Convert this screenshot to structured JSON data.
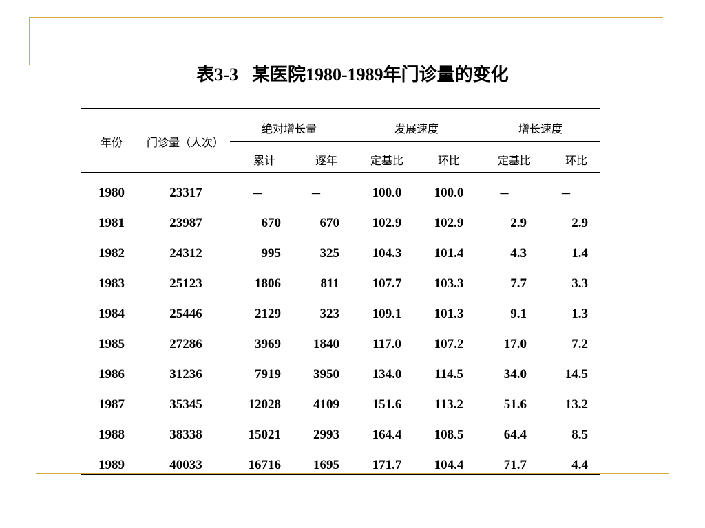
{
  "title": {
    "prefix": "表3-3",
    "text": "某医院1980-1989年门诊量的变化"
  },
  "headers": {
    "year": "年份",
    "visits": "门诊量（人次）",
    "absolute_growth": "绝对增长量",
    "cumulative": "累计",
    "year_on_year": "逐年",
    "development_speed": "发展速度",
    "fixed_base_ratio_dev": "定基比",
    "chain_ratio_dev": "环比",
    "growth_speed": "增长速度",
    "fixed_base_ratio_growth": "定基比",
    "chain_ratio_growth": "环比"
  },
  "rows": [
    {
      "year": "1980",
      "visits": "23317",
      "cumulative": "－",
      "yoy": "－",
      "dev_fixed": "100.0",
      "dev_chain": "100.0",
      "growth_fixed": "－",
      "growth_chain": "－"
    },
    {
      "year": "1981",
      "visits": "23987",
      "cumulative": "670",
      "yoy": "670",
      "dev_fixed": "102.9",
      "dev_chain": "102.9",
      "growth_fixed": "2.9",
      "growth_chain": "2.9"
    },
    {
      "year": "1982",
      "visits": "24312",
      "cumulative": "995",
      "yoy": "325",
      "dev_fixed": "104.3",
      "dev_chain": "101.4",
      "growth_fixed": "4.3",
      "growth_chain": "1.4"
    },
    {
      "year": "1983",
      "visits": "25123",
      "cumulative": "1806",
      "yoy": "811",
      "dev_fixed": "107.7",
      "dev_chain": "103.3",
      "growth_fixed": "7.7",
      "growth_chain": "3.3"
    },
    {
      "year": "1984",
      "visits": "25446",
      "cumulative": "2129",
      "yoy": "323",
      "dev_fixed": "109.1",
      "dev_chain": "101.3",
      "growth_fixed": "9.1",
      "growth_chain": "1.3"
    },
    {
      "year": "1985",
      "visits": "27286",
      "cumulative": "3969",
      "yoy": "1840",
      "dev_fixed": "117.0",
      "dev_chain": "107.2",
      "growth_fixed": "17.0",
      "growth_chain": "7.2"
    },
    {
      "year": "1986",
      "visits": "31236",
      "cumulative": "7919",
      "yoy": "3950",
      "dev_fixed": "134.0",
      "dev_chain": "114.5",
      "growth_fixed": "34.0",
      "growth_chain": "14.5"
    },
    {
      "year": "1987",
      "visits": "35345",
      "cumulative": "12028",
      "yoy": "4109",
      "dev_fixed": "151.6",
      "dev_chain": "113.2",
      "growth_fixed": "51.6",
      "growth_chain": "13.2"
    },
    {
      "year": "1988",
      "visits": "38338",
      "cumulative": "15021",
      "yoy": "2993",
      "dev_fixed": "164.4",
      "dev_chain": "108.5",
      "growth_fixed": "64.4",
      "growth_chain": "8.5"
    },
    {
      "year": "1989",
      "visits": "40033",
      "cumulative": "16716",
      "yoy": "1695",
      "dev_fixed": "171.7",
      "dev_chain": "104.4",
      "growth_fixed": "71.7",
      "growth_chain": "4.4"
    }
  ],
  "colors": {
    "accent_line": "#d4a843"
  }
}
